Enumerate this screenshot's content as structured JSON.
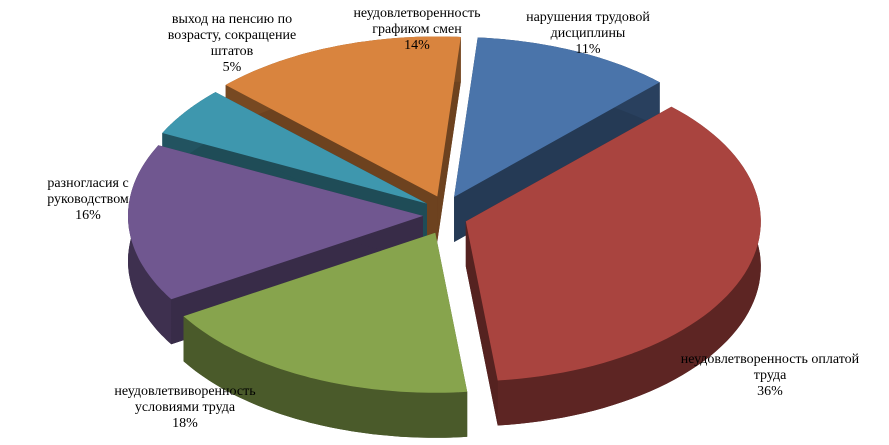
{
  "chart_data": {
    "type": "pie3d",
    "categories": [
      "нарушения трудовой дисциплины",
      "неудовлетворенность оплатой труда",
      "неудовлетвиворенность условиями труда",
      "разногласия с руководством",
      "выход на пенсию по возрасту, сокращение штатов",
      "неудовлетворенность графиком смен"
    ],
    "values": [
      11,
      36,
      18,
      16,
      5,
      14
    ],
    "value_labels": [
      "11%",
      "36%",
      "18%",
      "16%",
      "5%",
      "14%"
    ],
    "colors": [
      "#4a74aa",
      "#a9443f",
      "#87a44d",
      "#705790",
      "#3e97ae",
      "#d9843e"
    ]
  }
}
